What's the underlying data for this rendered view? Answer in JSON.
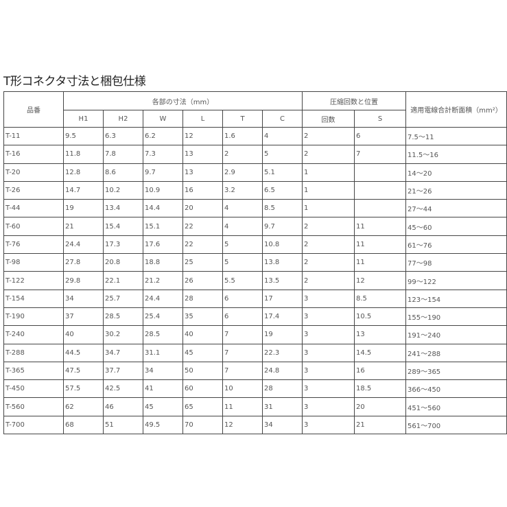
{
  "title": "T形コネクタ寸法と梱包仕様",
  "table": {
    "header_groups": {
      "part_no": "品番",
      "dimensions": "各部の寸法（mm）",
      "compression": "圧縮回数と位置",
      "wire_area": "適用電線合計断面積（mm²）"
    },
    "sub_headers": [
      "H1",
      "H2",
      "W",
      "L",
      "T",
      "C",
      "回数",
      "S"
    ],
    "rows": [
      [
        "T-11",
        "9.5",
        "6.3",
        "6.2",
        "12",
        "1.6",
        "4",
        "2",
        "6",
        "7.5～11"
      ],
      [
        "T-16",
        "11.8",
        "7.8",
        "7.3",
        "13",
        "2",
        "5",
        "2",
        "7",
        "11.5～16"
      ],
      [
        "T-20",
        "12.8",
        "8.6",
        "9.7",
        "13",
        "2.9",
        "5.1",
        "1",
        "",
        "14～20"
      ],
      [
        "T-26",
        "14.7",
        "10.2",
        "10.9",
        "16",
        "3.2",
        "6.5",
        "1",
        "",
        "21～26"
      ],
      [
        "T-44",
        "19",
        "13.4",
        "14.4",
        "20",
        "4",
        "8.5",
        "1",
        "",
        "27～44"
      ],
      [
        "T-60",
        "21",
        "15.4",
        "15.1",
        "22",
        "4",
        "9.7",
        "2",
        "11",
        "45～60"
      ],
      [
        "T-76",
        "24.4",
        "17.3",
        "17.6",
        "22",
        "5",
        "10.8",
        "2",
        "11",
        "61～76"
      ],
      [
        "T-98",
        "27.8",
        "20.8",
        "18.8",
        "25",
        "5",
        "13.8",
        "2",
        "11",
        "77～98"
      ],
      [
        "T-122",
        "29.8",
        "22.1",
        "21.2",
        "26",
        "5.5",
        "13.5",
        "2",
        "12",
        "99～122"
      ],
      [
        "T-154",
        "34",
        "25.7",
        "24.4",
        "28",
        "6",
        "17",
        "3",
        "8.5",
        "123～154"
      ],
      [
        "T-190",
        "37",
        "28.5",
        "25.4",
        "35",
        "6",
        "17.4",
        "3",
        "10.5",
        "155～190"
      ],
      [
        "T-240",
        "40",
        "30.2",
        "28.5",
        "40",
        "7",
        "19",
        "3",
        "13",
        "191～240"
      ],
      [
        "T-288",
        "44.5",
        "34.7",
        "31.1",
        "45",
        "7",
        "22.3",
        "3",
        "14.5",
        "241～288"
      ],
      [
        "T-365",
        "47.5",
        "37.7",
        "34",
        "50",
        "7",
        "24.8",
        "3",
        "16",
        "289～365"
      ],
      [
        "T-450",
        "57.5",
        "42.5",
        "41",
        "60",
        "10",
        "28",
        "3",
        "18.5",
        "366～450"
      ],
      [
        "T-560",
        "62",
        "46",
        "45",
        "65",
        "11",
        "31",
        "3",
        "20",
        "451～560"
      ],
      [
        "T-700",
        "68",
        "51",
        "49.5",
        "70",
        "12",
        "34",
        "3",
        "21",
        "561～700"
      ]
    ]
  }
}
